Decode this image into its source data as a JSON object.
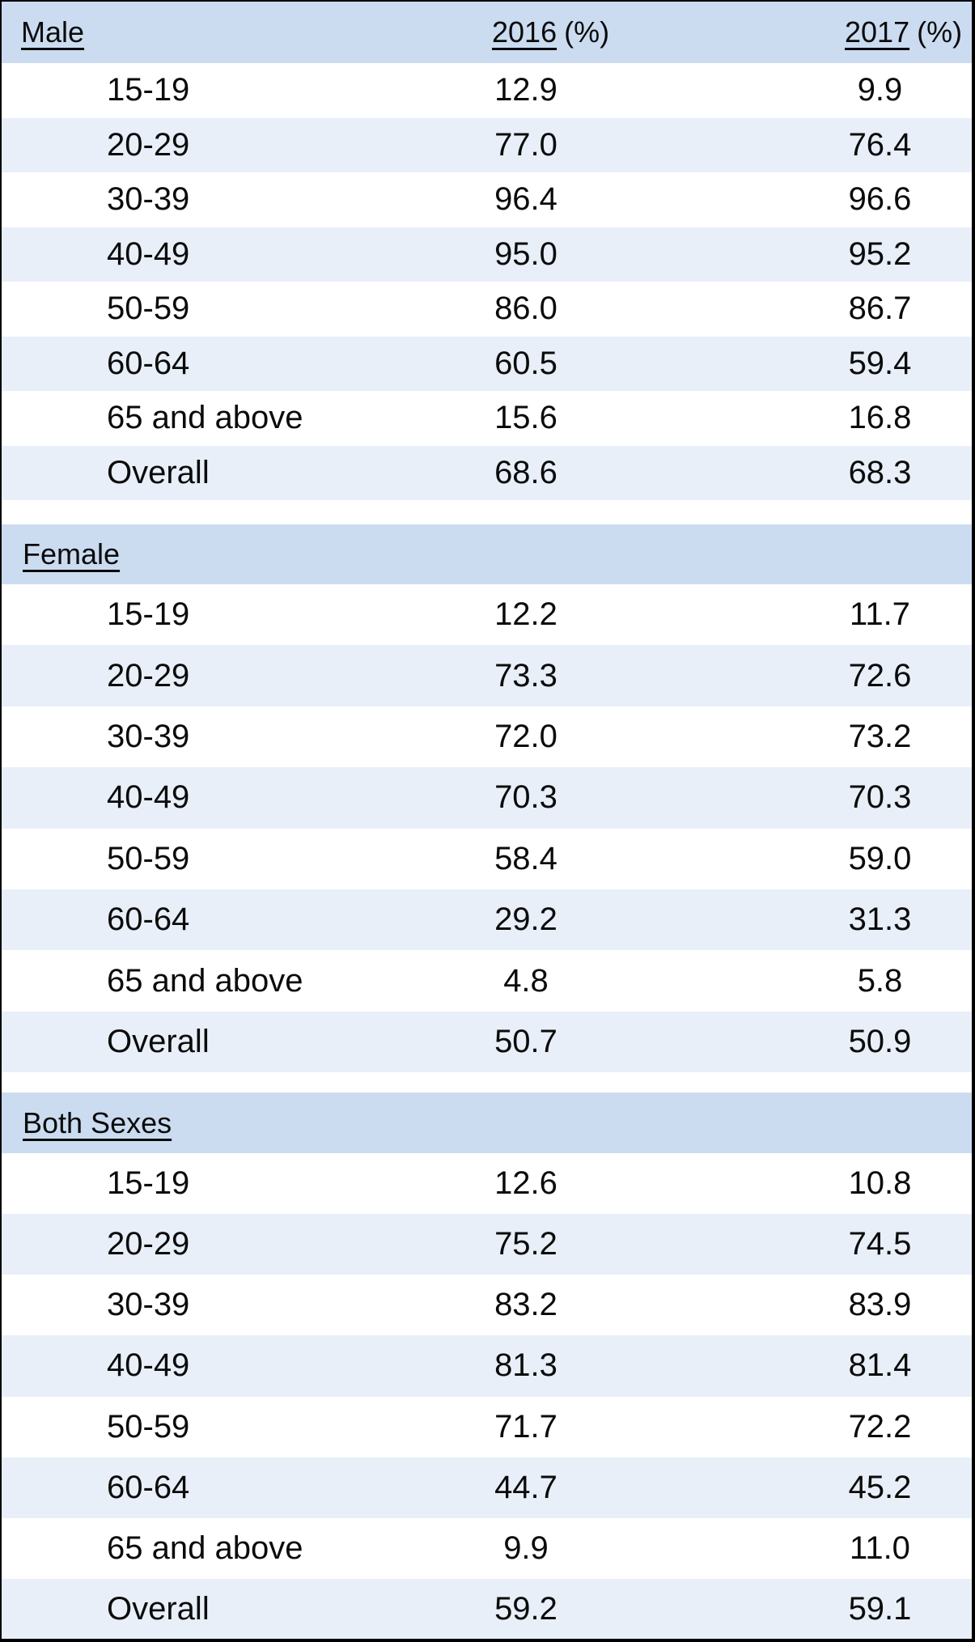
{
  "chart_data": {
    "type": "table",
    "unit_suffix": "(%)",
    "year_columns": [
      "2016",
      "2017"
    ],
    "sections": [
      {
        "label": "Male",
        "rows": [
          {
            "age": "15-19",
            "y2016": "12.9",
            "y2017": "9.9"
          },
          {
            "age": "20-29",
            "y2016": "77.0",
            "y2017": "76.4"
          },
          {
            "age": "30-39",
            "y2016": "96.4",
            "y2017": "96.6"
          },
          {
            "age": "40-49",
            "y2016": "95.0",
            "y2017": "95.2"
          },
          {
            "age": "50-59",
            "y2016": "86.0",
            "y2017": "86.7"
          },
          {
            "age": "60-64",
            "y2016": "60.5",
            "y2017": "59.4"
          },
          {
            "age": "65 and above",
            "y2016": "15.6",
            "y2017": "16.8"
          },
          {
            "age": "Overall",
            "y2016": "68.6",
            "y2017": "68.3"
          }
        ]
      },
      {
        "label": "Female",
        "rows": [
          {
            "age": "15-19",
            "y2016": "12.2",
            "y2017": "11.7"
          },
          {
            "age": "20-29",
            "y2016": "73.3",
            "y2017": "72.6"
          },
          {
            "age": "30-39",
            "y2016": "72.0",
            "y2017": "73.2"
          },
          {
            "age": "40-49",
            "y2016": "70.3",
            "y2017": "70.3"
          },
          {
            "age": "50-59",
            "y2016": "58.4",
            "y2017": "59.0"
          },
          {
            "age": "60-64",
            "y2016": "29.2",
            "y2017": "31.3"
          },
          {
            "age": "65 and above",
            "y2016": "4.8",
            "y2017": "5.8"
          },
          {
            "age": "Overall",
            "y2016": "50.7",
            "y2017": "50.9"
          }
        ]
      },
      {
        "label": "Both Sexes",
        "rows": [
          {
            "age": "15-19",
            "y2016": "12.6",
            "y2017": "10.8"
          },
          {
            "age": "20-29",
            "y2016": "75.2",
            "y2017": "74.5"
          },
          {
            "age": "30-39",
            "y2016": "83.2",
            "y2017": "83.9"
          },
          {
            "age": "40-49",
            "y2016": "81.3",
            "y2017": "81.4"
          },
          {
            "age": "50-59",
            "y2016": "71.7",
            "y2017": "72.2"
          },
          {
            "age": "60-64",
            "y2016": "44.7",
            "y2017": "45.2"
          },
          {
            "age": "65 and above",
            "y2016": "9.9",
            "y2017": "11.0"
          },
          {
            "age": "Overall",
            "y2016": "59.2",
            "y2017": "59.1"
          }
        ]
      }
    ]
  },
  "colors": {
    "section_band": "#cbdcf1",
    "alt_row": "#e8eff8",
    "border": "#000000",
    "text": "#0b0b0b"
  }
}
